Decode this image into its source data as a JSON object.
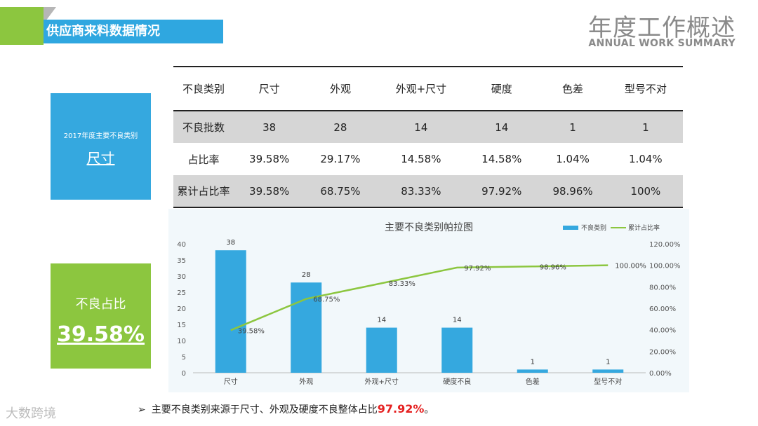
{
  "header": {
    "section_title": "供应商来料数据情况",
    "title": "年度工作概述",
    "subtitle": "ANNUAL WORK SUMMARY"
  },
  "blue_box": {
    "caption": "2017年度主要不良类别",
    "value": "尺寸"
  },
  "green_box": {
    "caption": "不良占比",
    "value": "39.58%"
  },
  "table": {
    "headers": [
      "不良类别",
      "尺寸",
      "外观",
      "外观+尺寸",
      "硬度",
      "色差",
      "型号不对"
    ],
    "rows": [
      [
        "不良批数",
        "38",
        "28",
        "14",
        "14",
        "1",
        "1"
      ],
      [
        "占比率",
        "39.58%",
        "29.17%",
        "14.58%",
        "14.58%",
        "1.04%",
        "1.04%"
      ],
      [
        "累计占比率",
        "39.58%",
        "68.75%",
        "83.33%",
        "97.92%",
        "98.96%",
        "100%"
      ]
    ]
  },
  "chart_data": {
    "type": "bar",
    "title": "主要不良类别帕拉图",
    "categories": [
      "尺寸",
      "外观",
      "外观+尺寸",
      "硬度不良",
      "色差",
      "型号不对"
    ],
    "series": [
      {
        "name": "不良类别",
        "type": "bar",
        "axis": "left",
        "color": "#35a8df",
        "values": [
          38,
          28,
          14,
          14,
          1,
          1
        ],
        "labels": [
          "38",
          "28",
          "14",
          "14",
          "1",
          "1"
        ]
      },
      {
        "name": "累计占比率",
        "type": "line",
        "axis": "right",
        "color": "#8cc63f",
        "values": [
          39.58,
          68.75,
          83.33,
          97.92,
          98.96,
          100.0
        ],
        "labels": [
          "39.58%",
          "68.75%",
          "83.33%",
          "97.92%",
          "98.96%",
          "100.00%"
        ]
      }
    ],
    "ylim_left": [
      0,
      40
    ],
    "yticks_left": [
      "0",
      "5",
      "10",
      "15",
      "20",
      "25",
      "30",
      "35",
      "40"
    ],
    "ylim_right": [
      0,
      120
    ],
    "yticks_right": [
      "0.00%",
      "20.00%",
      "40.00%",
      "60.00%",
      "80.00%",
      "100.00%",
      "120.00%"
    ],
    "legend_position": "top-right",
    "grid": false
  },
  "note": {
    "bullet": "➢",
    "text": "主要不良类别来源于尺寸、外观及硬度不良整体占比",
    "highlight": "97.92%",
    "suffix": "。"
  },
  "watermark": "大数跨境",
  "colors": {
    "accent_blue": "#35a8df",
    "accent_green": "#8cc63f",
    "highlight_red": "#e52020"
  }
}
